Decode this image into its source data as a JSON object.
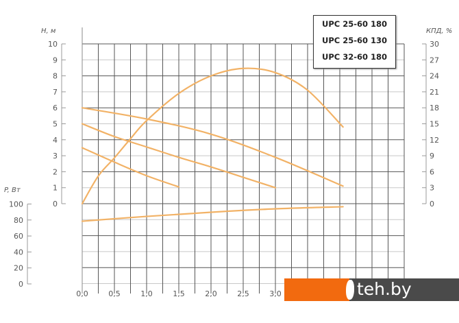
{
  "chart_data": {
    "type": "line",
    "grid": true,
    "line_color": "#f2b266",
    "x_axis": {
      "ticks": [
        "0,0",
        "0,5",
        "1,0",
        "1,5",
        "2,0",
        "2,5",
        "3,0"
      ],
      "range": [
        0,
        5
      ]
    },
    "y_axis_head": {
      "label": "H, м",
      "ticks": [
        "0",
        "1",
        "2",
        "3",
        "4",
        "5",
        "6",
        "7",
        "8",
        "9",
        "10"
      ],
      "range": [
        0,
        10
      ]
    },
    "y_axis_power": {
      "label": "P, Вт",
      "ticks": [
        "0",
        "20",
        "40",
        "60",
        "80",
        "100"
      ],
      "range": [
        0,
        100
      ]
    },
    "y_axis_efficiency": {
      "label": "КПД, %",
      "ticks": [
        "0",
        "3",
        "6",
        "9",
        "12",
        "15",
        "18",
        "21",
        "24",
        "27",
        "30"
      ],
      "range": [
        0,
        30
      ]
    },
    "legend": {
      "placement": "top-right",
      "entries": [
        "UPC 25-60 180",
        "UPC 25-60 130",
        "UPC 32-60 180"
      ]
    },
    "series": [
      {
        "axis": "head",
        "x": [
          0,
          1,
          2,
          3,
          4.05
        ],
        "y": [
          6,
          5.3,
          4.35,
          2.9,
          1.1
        ]
      },
      {
        "axis": "head",
        "x": [
          0,
          0.5,
          1,
          1.5,
          2,
          2.5,
          3
        ],
        "y": [
          5,
          4.2,
          3.55,
          2.9,
          2.3,
          1.65,
          1.0
        ]
      },
      {
        "axis": "head",
        "x": [
          0,
          0.5,
          1,
          1.5
        ],
        "y": [
          3.5,
          2.6,
          1.75,
          1.05
        ]
      },
      {
        "axis": "efficiency",
        "x": [
          0,
          0.25,
          0.5,
          0.75,
          1,
          1.5,
          2,
          2.5,
          3,
          3.5,
          4.05
        ],
        "y": [
          0,
          5.2,
          8.6,
          12.2,
          15.6,
          20.7,
          24,
          25.4,
          24.6,
          21.3,
          14.4
        ]
      },
      {
        "axis": "power",
        "x": [
          0,
          1,
          2,
          3,
          4.05
        ],
        "y": [
          78.5,
          84.5,
          89.7,
          94,
          96.6
        ]
      }
    ]
  },
  "watermark": "teh.by"
}
